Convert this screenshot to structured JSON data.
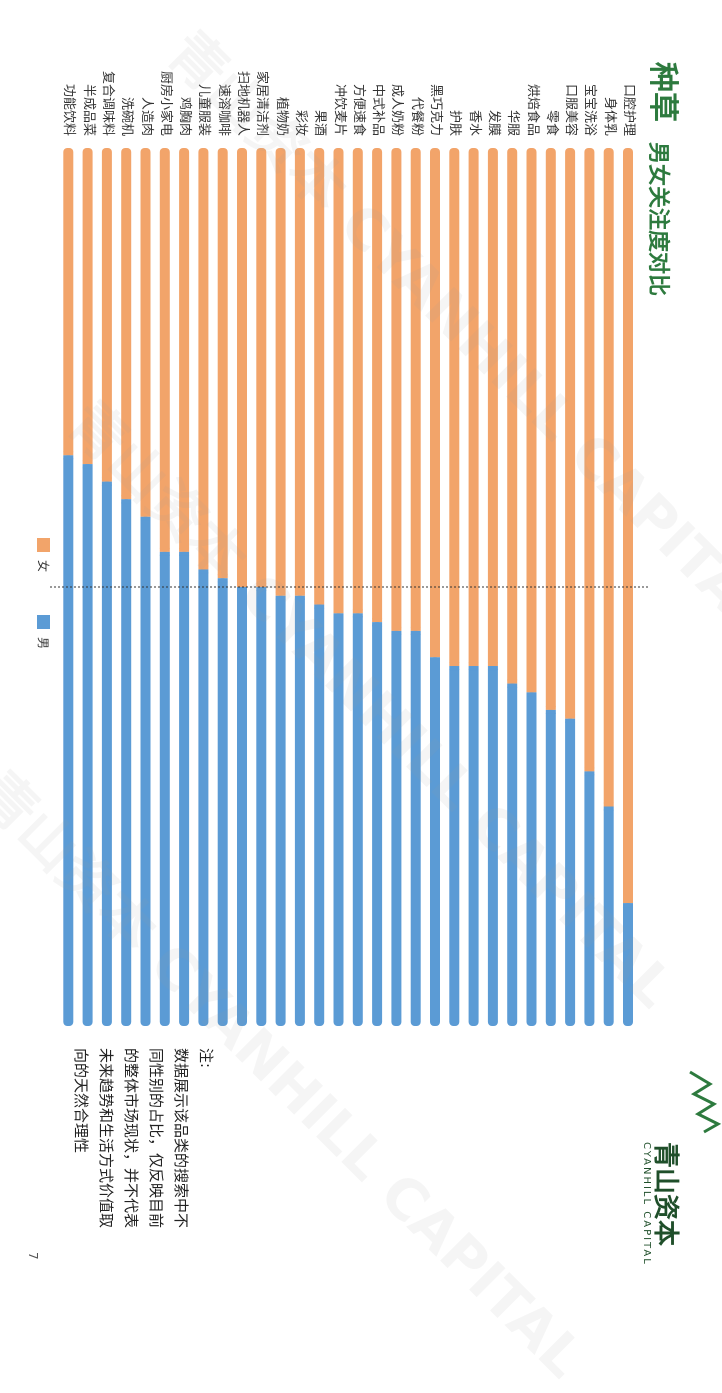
{
  "title": "种草",
  "subtitle": "男女关注度对比",
  "legend": {
    "female": "女",
    "male": "男"
  },
  "colors": {
    "female": "#f2a46a",
    "male": "#5b9bd5",
    "title": "#2d7a3e",
    "reference": "#333333"
  },
  "notes": {
    "heading": "注:",
    "lines": [
      "数据展示该品类的搜索中不",
      "同性别的占比，仅反映目前",
      "的整体市场现状，并不代表",
      "未来趋势和生活方式价值取",
      "向的天然合理性"
    ]
  },
  "logo": {
    "name": "青山资本",
    "english": "CYANHILL CAPITAL",
    "icon": "mountain-logo-icon"
  },
  "page_number": "7",
  "chart_data": {
    "type": "bar",
    "stacked": true,
    "normalized": true,
    "orientation": "horizontal",
    "categories": [
      "口腔护理",
      "身体乳",
      "宝宝洗浴",
      "口服美容",
      "零食",
      "烘焙食品",
      "华服",
      "发膜",
      "香水",
      "护肤",
      "黑巧克力",
      "代餐粉",
      "成人奶粉",
      "中式补品",
      "方便速食",
      "冲饮麦片",
      "果酒",
      "彩妆",
      "植物奶",
      "家居清洁剂",
      "扫地机器人",
      "速溶咖啡",
      "儿童服装",
      "鸡胸肉",
      "厨房小家电",
      "人造肉",
      "洗碗机",
      "复合调味料",
      "半成品菜",
      "功能饮料"
    ],
    "series": [
      {
        "name": "女",
        "values": [
          86,
          75,
          71,
          65,
          64,
          62,
          61,
          59,
          59,
          59,
          58,
          55,
          55,
          54,
          53,
          53,
          52,
          51,
          51,
          50,
          50,
          49,
          48,
          46,
          46,
          42,
          40,
          38,
          36,
          35
        ]
      },
      {
        "name": "男",
        "values": [
          14,
          25,
          29,
          35,
          36,
          38,
          39,
          41,
          41,
          41,
          42,
          45,
          45,
          46,
          47,
          47,
          48,
          49,
          49,
          50,
          50,
          51,
          52,
          54,
          54,
          58,
          60,
          62,
          64,
          65
        ]
      }
    ],
    "xlim": [
      0,
      100
    ],
    "reference_line": 50
  }
}
